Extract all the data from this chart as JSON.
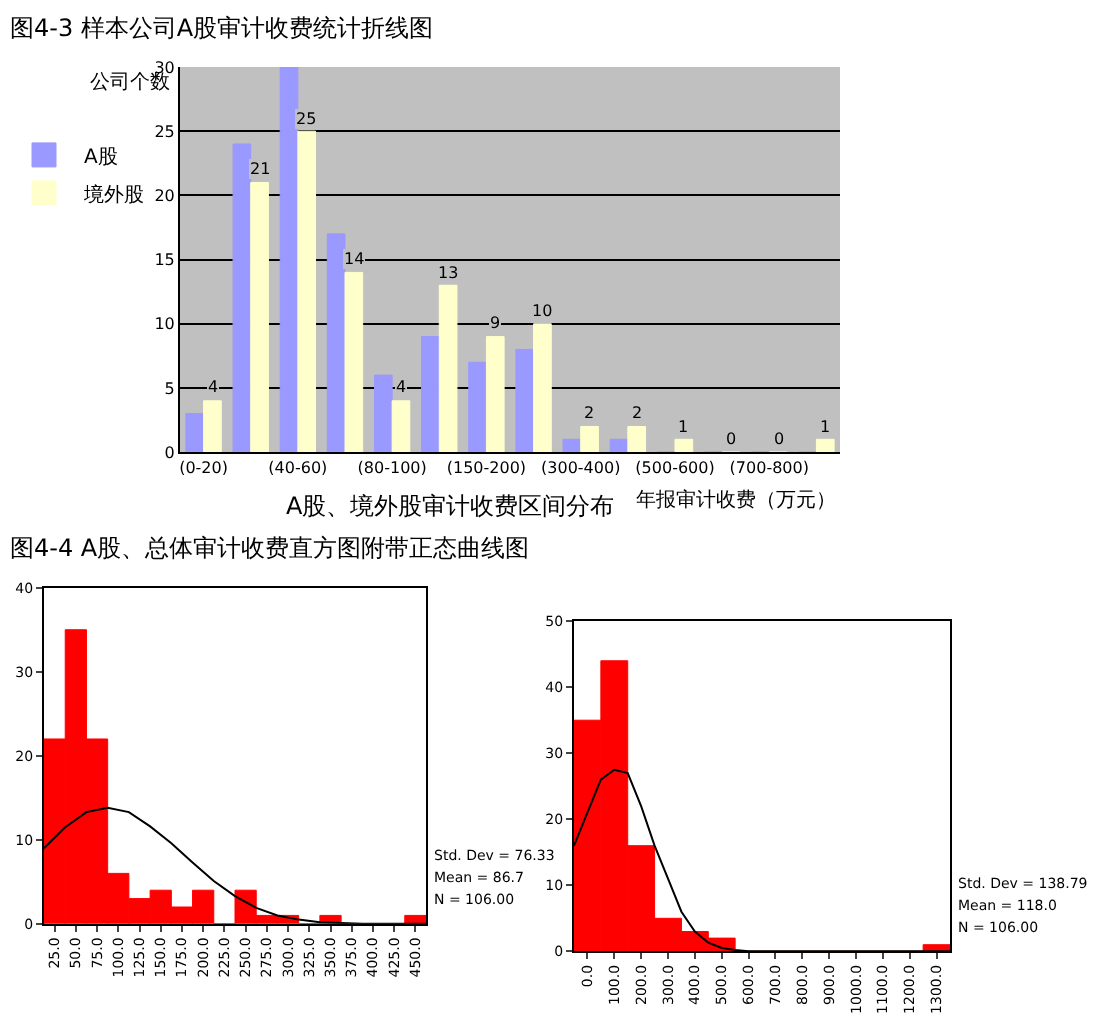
{
  "chart_data": [
    {
      "type": "bar",
      "title": "图4-3 样本公司A股审计收费统计折线图",
      "xlabel": "A股、境外股审计收费区间分布",
      "ylabel": "公司个数",
      "annotations": [
        "年报审计收费（万元）"
      ],
      "categories": [
        "(0-20)",
        null,
        "(40-60)",
        null,
        "(80-100)",
        null,
        "(150-200)",
        null,
        "(300-400)",
        null,
        "(500-600)",
        null,
        "(700-800)",
        null
      ],
      "series": [
        {
          "name": "A股",
          "color": "#9999ff",
          "values": [
            3,
            24,
            30,
            17,
            6,
            9,
            7,
            8,
            1,
            1,
            0,
            0,
            0,
            0
          ]
        },
        {
          "name": "境外股",
          "color": "#ffffcc",
          "values": [
            4,
            21,
            25,
            14,
            4,
            13,
            9,
            10,
            2,
            2,
            1,
            0,
            0,
            1
          ],
          "value_labels": [
            "4",
            "21",
            "25",
            "14",
            "4",
            "13",
            "9",
            "10",
            "2",
            "2",
            "1",
            "0",
            "0",
            "1"
          ]
        }
      ],
      "ylim": [
        0,
        30
      ],
      "yticks": [
        0,
        5,
        10,
        15,
        20,
        25,
        30
      ],
      "grid": "y",
      "legend": "left"
    },
    {
      "type": "histogram",
      "title": "图4-4 A股、总体审计收费直方图附带正态曲线图",
      "annotations": [
        "Std. Dev = 76.33",
        "Mean = 86.7",
        "N = 106.00"
      ],
      "color": "#ff0000",
      "bins": [
        12.5,
        37.5,
        62.5,
        87.5,
        112.5,
        137.5,
        162.5,
        187.5,
        212.5,
        237.5,
        262.5,
        287.5,
        312.5,
        337.5,
        362.5,
        387.5,
        412.5,
        437.5,
        462.5
      ],
      "values": [
        22,
        35,
        22,
        6,
        3,
        4,
        2,
        4,
        0,
        4,
        1,
        1,
        0,
        1,
        0,
        0,
        0,
        1
      ],
      "series": [
        {
          "type": "line",
          "color": "#000000",
          "x": [
            12.5,
            37.5,
            62.5,
            87.5,
            112.5,
            137.5,
            162.5,
            187.5,
            212.5,
            237.5,
            262.5,
            287.5,
            312.5,
            337.5,
            362.5,
            387.5,
            437.5,
            462.5
          ],
          "values": [
            9,
            11.5,
            13.3,
            13.8,
            13.3,
            11.6,
            9.6,
            7.3,
            5.1,
            3.3,
            1.9,
            1,
            0.5,
            0.2,
            0.1,
            0,
            0,
            0
          ]
        }
      ],
      "xlim": [
        12.5,
        462.5
      ],
      "xticks": [
        {
          "value": 25,
          "label": "25.0"
        },
        {
          "value": 50,
          "label": "50.0"
        },
        {
          "value": 75,
          "label": "75.0"
        },
        {
          "value": 100,
          "label": "100.0"
        },
        {
          "value": 125,
          "label": "125.0"
        },
        {
          "value": 150,
          "label": "150.0"
        },
        {
          "value": 175,
          "label": "175.0"
        },
        {
          "value": 200,
          "label": "200.0"
        },
        {
          "value": 225,
          "label": "225.0"
        },
        {
          "value": 250,
          "label": "250.0"
        },
        {
          "value": 275,
          "label": "275.0"
        },
        {
          "value": 300,
          "label": "300.0"
        },
        {
          "value": 325,
          "label": "325.0"
        },
        {
          "value": 350,
          "label": "350.0"
        },
        {
          "value": 375,
          "label": "375.0"
        },
        {
          "value": 400,
          "label": "400.0"
        },
        {
          "value": 425,
          "label": "425.0"
        },
        {
          "value": 450,
          "label": "450.0"
        }
      ],
      "ylim": [
        0,
        40
      ],
      "yticks": [
        0,
        10,
        20,
        30,
        40
      ]
    },
    {
      "type": "histogram",
      "annotations": [
        "Std. Dev = 138.79",
        "Mean = 118.0",
        "N = 106.00"
      ],
      "color": "#ff0000",
      "bins": [
        -50,
        50,
        150,
        250,
        350,
        450,
        550,
        650,
        750,
        850,
        950,
        1050,
        1150,
        1250,
        1350
      ],
      "values": [
        35,
        44,
        16,
        5,
        3,
        2,
        0,
        0,
        0,
        0,
        0,
        0,
        0,
        1
      ],
      "series": [
        {
          "type": "line",
          "color": "#000000",
          "x": [
            -50,
            0,
            50,
            100,
            150,
            200,
            250,
            300,
            350,
            400,
            450,
            500,
            550,
            600,
            1350
          ],
          "values": [
            16,
            21,
            26,
            27.5,
            27,
            22,
            16,
            11,
            6,
            3,
            1.3,
            0.5,
            0.2,
            0,
            0
          ]
        }
      ],
      "xlim": [
        -50,
        1350
      ],
      "xticks": [
        {
          "value": 0,
          "label": "0.0"
        },
        {
          "value": 100,
          "label": "100.0"
        },
        {
          "value": 200,
          "label": "200.0"
        },
        {
          "value": 300,
          "label": "300.0"
        },
        {
          "value": 400,
          "label": "400.0"
        },
        {
          "value": 500,
          "label": "500.0"
        },
        {
          "value": 600,
          "label": "600.0"
        },
        {
          "value": 700,
          "label": "700.0"
        },
        {
          "value": 800,
          "label": "800.0"
        },
        {
          "value": 900,
          "label": "900.0"
        },
        {
          "value": 1000,
          "label": "1000.0"
        },
        {
          "value": 1100,
          "label": "1100.0"
        },
        {
          "value": 1200,
          "label": "1200.0"
        },
        {
          "value": 1300,
          "label": "1300.0"
        }
      ],
      "ylim": [
        0,
        50
      ],
      "yticks": [
        0,
        10,
        20,
        30,
        40,
        50
      ]
    }
  ]
}
